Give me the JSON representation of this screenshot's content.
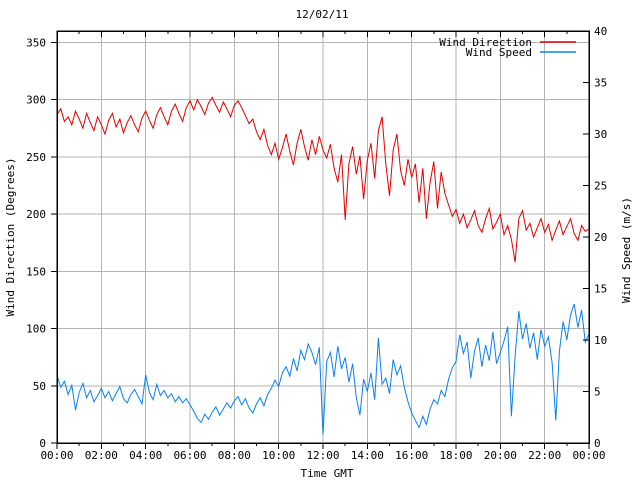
{
  "title": "12/02/11",
  "axes": {
    "x": {
      "label": "Time GMT",
      "tick_labels": [
        "00:00",
        "02:00",
        "04:00",
        "06:00",
        "08:00",
        "10:00",
        "12:00",
        "14:00",
        "16:00",
        "18:00",
        "20:00",
        "22:00",
        "00:00"
      ],
      "minor_ticks_every_hours": 1
    },
    "y_left": {
      "label": "Wind Direction (Degrees)",
      "min": 0,
      "max": 360,
      "tick_step": 50,
      "tick_min": 0,
      "tick_max": 350
    },
    "y_right": {
      "label": "Wind Speed (m/s)",
      "min": 0,
      "max": 40,
      "tick_step": 5,
      "tick_min": 0,
      "tick_max": 40
    }
  },
  "legend": [
    {
      "label": "Wind Direction",
      "color": "#e00000"
    },
    {
      "label": "Wind Speed",
      "color": "#0a80f0"
    }
  ],
  "colors": {
    "background": "#ffffff",
    "border": "#000000",
    "grid": "#b3b3b3",
    "wind_direction_line": "#e00000",
    "wind_speed_line": "#0a80f0"
  },
  "chart_data": {
    "type": "line",
    "title": "12/02/11",
    "xlabel": "Time GMT",
    "ylabel_left": "Wind Direction (Degrees)",
    "ylabel_right": "Wind Speed (m/s)",
    "x_start": "00:00",
    "x_end": "00:00",
    "x_span_minutes": 1440,
    "x_minutes_step": 10,
    "grid": true,
    "legend_position": "top-right-inside",
    "ylim_left": [
      0,
      360
    ],
    "ylim_right": [
      0,
      40
    ],
    "series": [
      {
        "name": "Wind Direction",
        "axis": "left",
        "units": "Degrees",
        "color": "#e00000",
        "values": [
          287,
          292,
          281,
          285,
          278,
          290,
          283,
          275,
          288,
          280,
          273,
          285,
          278,
          270,
          282,
          288,
          276,
          283,
          271,
          280,
          286,
          278,
          272,
          284,
          290,
          282,
          275,
          287,
          293,
          285,
          278,
          290,
          296,
          288,
          281,
          293,
          299,
          291,
          300,
          294,
          287,
          297,
          302,
          295,
          289,
          298,
          292,
          285,
          295,
          299,
          293,
          286,
          279,
          283,
          272,
          265,
          274,
          260,
          252,
          262,
          248,
          258,
          270,
          255,
          243,
          262,
          274,
          259,
          247,
          265,
          252,
          268,
          256,
          249,
          261,
          240,
          228,
          252,
          195,
          244,
          259,
          235,
          251,
          213,
          247,
          262,
          231,
          273,
          285,
          244,
          216,
          256,
          270,
          238,
          225,
          248,
          232,
          244,
          210,
          240,
          196,
          228,
          246,
          205,
          237,
          218,
          208,
          198,
          204,
          192,
          200,
          188,
          195,
          203,
          190,
          184,
          196,
          205,
          187,
          193,
          200,
          182,
          190,
          178,
          158,
          196,
          203,
          186,
          192,
          180,
          188,
          196,
          184,
          191,
          177,
          186,
          194,
          182,
          189,
          196,
          183,
          177,
          190,
          185,
          187
        ]
      },
      {
        "name": "Wind Speed",
        "axis": "right",
        "units": "m/s",
        "color": "#0a80f0",
        "values": [
          6.6,
          5.4,
          6.0,
          4.7,
          5.6,
          3.2,
          4.9,
          5.8,
          4.4,
          5.1,
          4.0,
          4.6,
          5.3,
          4.4,
          5.0,
          4.1,
          4.8,
          5.5,
          4.3,
          3.9,
          4.7,
          5.2,
          4.5,
          3.8,
          6.6,
          4.9,
          4.2,
          5.7,
          4.6,
          5.1,
          4.4,
          4.8,
          4.0,
          4.5,
          3.9,
          4.3,
          3.7,
          3.1,
          2.4,
          2.0,
          2.8,
          2.3,
          3.0,
          3.5,
          2.7,
          3.3,
          3.9,
          3.4,
          4.1,
          4.5,
          3.7,
          4.3,
          3.4,
          2.9,
          3.8,
          4.4,
          3.6,
          4.7,
          5.3,
          6.1,
          5.5,
          6.8,
          7.4,
          6.5,
          8.2,
          7.0,
          9.0,
          8.1,
          9.6,
          8.8,
          7.6,
          9.3,
          0.8,
          7.9,
          8.8,
          6.4,
          9.4,
          7.2,
          8.3,
          5.9,
          7.7,
          4.4,
          2.7,
          6.2,
          5.0,
          6.8,
          4.2,
          10.2,
          5.7,
          6.3,
          4.8,
          8.1,
          6.6,
          7.5,
          5.4,
          4.0,
          2.9,
          2.2,
          1.5,
          2.6,
          1.8,
          3.3,
          4.2,
          3.8,
          5.1,
          4.5,
          6.2,
          7.3,
          7.9,
          10.5,
          8.7,
          9.8,
          6.3,
          8.9,
          10.2,
          7.4,
          9.5,
          8.0,
          10.8,
          7.7,
          8.8,
          9.9,
          11.3,
          2.6,
          8.4,
          12.8,
          10.1,
          11.6,
          9.2,
          10.7,
          8.1,
          11.0,
          9.4,
          10.3,
          7.8,
          2.2,
          8.9,
          11.8,
          10.0,
          12.4,
          13.5,
          11.2,
          12.9,
          9.8,
          10.6
        ]
      }
    ]
  }
}
